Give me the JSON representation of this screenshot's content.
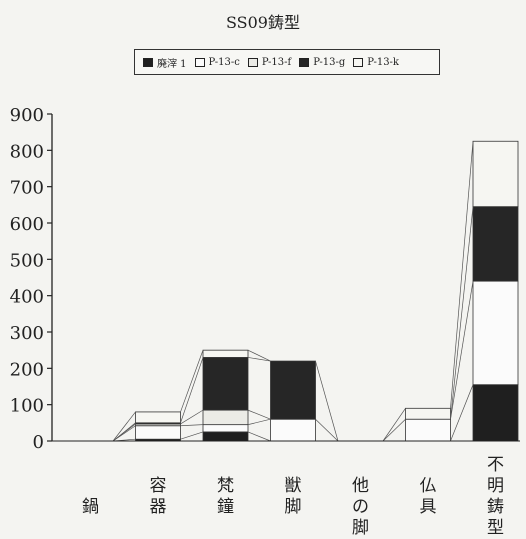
{
  "chart_data": {
    "type": "bar",
    "stacked": true,
    "title": "SS09鋳型",
    "categories": [
      "鍋",
      "容器",
      "梵鐘",
      "獣脚",
      "他の脚",
      "仏具",
      "不明鋳型"
    ],
    "category_lines": [
      [
        "鍋"
      ],
      [
        "容",
        "器"
      ],
      [
        "梵",
        "鐘"
      ],
      [
        "獣",
        "脚"
      ],
      [
        "他",
        "の",
        "脚"
      ],
      [
        "仏",
        "具"
      ],
      [
        "不",
        "明",
        "鋳",
        "型"
      ]
    ],
    "series": [
      {
        "name": "廃滓1",
        "color": "#1f1f1f",
        "values": [
          0,
          5,
          25,
          0,
          0,
          0,
          155
        ]
      },
      {
        "name": "P-13-c",
        "color": "#fbfbfb",
        "values": [
          0,
          37,
          20,
          60,
          0,
          60,
          285
        ]
      },
      {
        "name": "P-13-f",
        "color": "#ebebe6",
        "values": [
          0,
          5,
          40,
          0,
          0,
          0,
          0
        ]
      },
      {
        "name": "P-13-g",
        "color": "#262626",
        "values": [
          0,
          3,
          145,
          160,
          0,
          0,
          205
        ]
      },
      {
        "name": "P-13-k",
        "color": "#f6f6f2",
        "values": [
          0,
          30,
          20,
          0,
          0,
          30,
          180
        ]
      }
    ],
    "legend_labels": [
      "廃滓 1",
      "P-13-c",
      "P-13-f",
      "P-13-g",
      "P-13-k"
    ],
    "ylim": [
      0,
      900
    ],
    "yticks": [
      "0",
      "100",
      "200",
      "300",
      "400",
      "500",
      "600",
      "700",
      "800",
      "900"
    ],
    "xlabel": "",
    "ylabel": "",
    "grid": false,
    "legend_position": "top"
  }
}
